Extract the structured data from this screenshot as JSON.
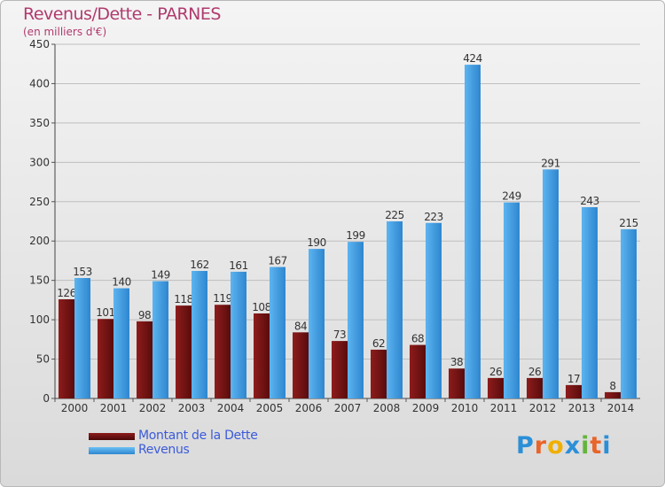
{
  "chart_data": {
    "type": "bar",
    "title": "Revenus/Dette - PARNES",
    "subtitle": "(en milliers d'€)",
    "categories": [
      "2000",
      "2001",
      "2002",
      "2003",
      "2004",
      "2005",
      "2006",
      "2007",
      "2008",
      "2009",
      "2010",
      "2011",
      "2012",
      "2013",
      "2014"
    ],
    "series": [
      {
        "name": "Montant de la Dette",
        "color": "#7a1414",
        "values": [
          126,
          101,
          98,
          118,
          119,
          108,
          84,
          73,
          62,
          68,
          38,
          26,
          26,
          17,
          8
        ]
      },
      {
        "name": "Revenus",
        "color": "#3c9be0",
        "values": [
          153,
          140,
          149,
          162,
          161,
          167,
          190,
          199,
          225,
          223,
          424,
          249,
          291,
          243,
          215
        ]
      }
    ],
    "yticks": [
      0,
      50,
      100,
      150,
      200,
      250,
      300,
      350,
      400,
      450
    ],
    "ylim": [
      0,
      450
    ],
    "grid": true,
    "legend_position": "bottom-left"
  },
  "logo": {
    "letters": [
      "P",
      "r",
      "o",
      "x",
      "i",
      "t",
      "i"
    ],
    "colors": [
      "#2b8fd8",
      "#e8642a",
      "#f0b000",
      "#2b8fd8",
      "#64b43c",
      "#e8642a",
      "#2b8fd8"
    ]
  }
}
